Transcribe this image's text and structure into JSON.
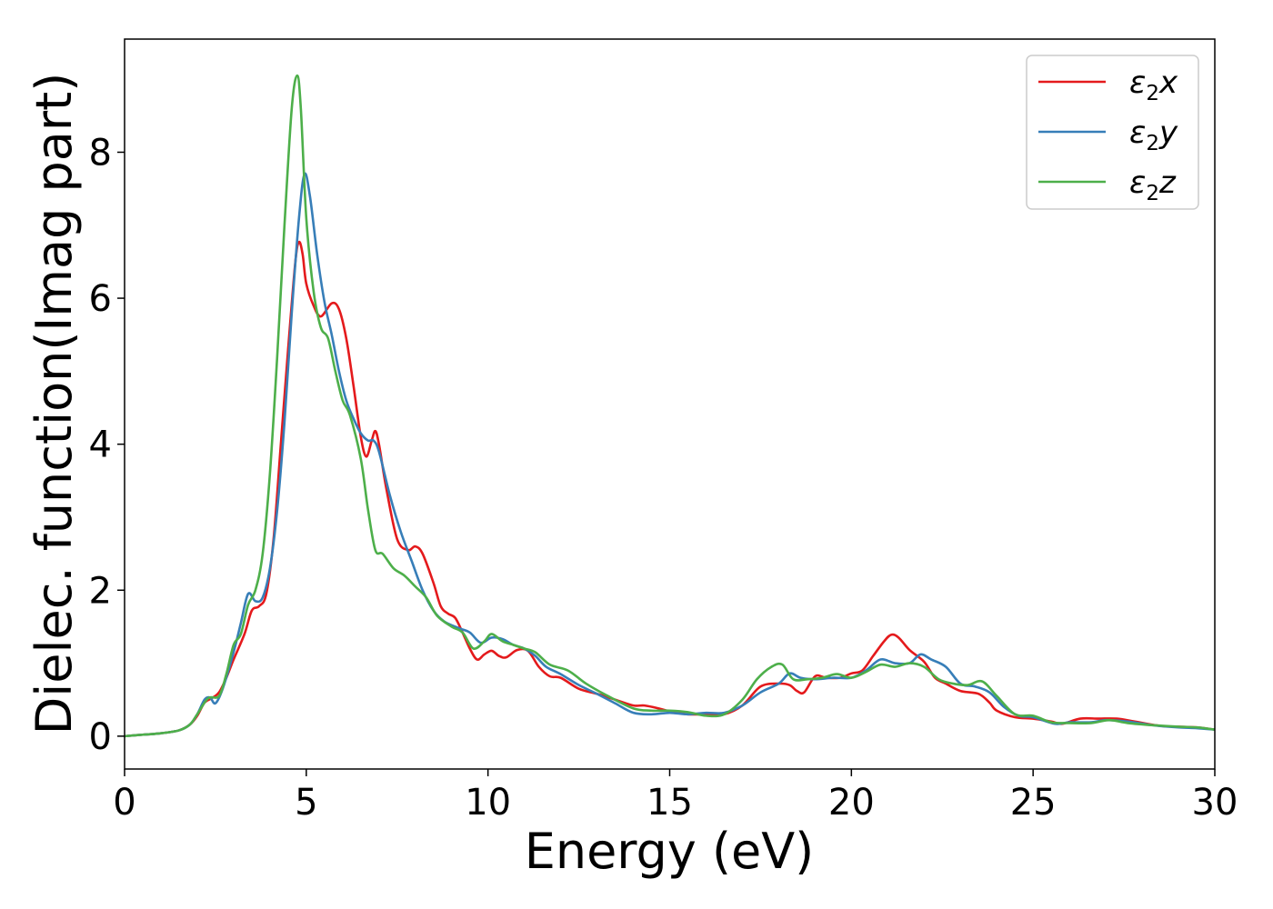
{
  "chart_data": {
    "type": "line",
    "title": "",
    "xlabel": "Energy (eV)",
    "ylabel": "Dielec. function(Imag part)",
    "xlim": [
      0,
      30
    ],
    "ylim": [
      -0.45,
      9.55
    ],
    "xticks": [
      0,
      5,
      10,
      15,
      20,
      25,
      30
    ],
    "yticks": [
      0,
      2,
      4,
      6,
      8
    ],
    "grid": false,
    "legend_position": "top-right",
    "series": [
      {
        "name": "ε₂x",
        "legend_base": "ε",
        "legend_sub": "2",
        "legend_suffix": "x",
        "color": "#e41a1c",
        "points": [
          [
            0,
            0
          ],
          [
            0.5,
            0.02
          ],
          [
            1,
            0.04
          ],
          [
            1.5,
            0.08
          ],
          [
            1.8,
            0.16
          ],
          [
            2,
            0.28
          ],
          [
            2.2,
            0.46
          ],
          [
            2.4,
            0.52
          ],
          [
            2.6,
            0.6
          ],
          [
            2.8,
            0.8
          ],
          [
            3,
            1.05
          ],
          [
            3.3,
            1.4
          ],
          [
            3.5,
            1.72
          ],
          [
            3.7,
            1.78
          ],
          [
            3.9,
            1.95
          ],
          [
            4.1,
            2.7
          ],
          [
            4.3,
            4.0
          ],
          [
            4.5,
            5.3
          ],
          [
            4.7,
            6.5
          ],
          [
            4.8,
            6.77
          ],
          [
            4.9,
            6.6
          ],
          [
            5.0,
            6.2
          ],
          [
            5.2,
            5.9
          ],
          [
            5.4,
            5.75
          ],
          [
            5.7,
            5.93
          ],
          [
            5.9,
            5.85
          ],
          [
            6.1,
            5.45
          ],
          [
            6.3,
            4.8
          ],
          [
            6.5,
            4.1
          ],
          [
            6.65,
            3.83
          ],
          [
            6.8,
            4.05
          ],
          [
            6.9,
            4.18
          ],
          [
            7.0,
            4.0
          ],
          [
            7.2,
            3.4
          ],
          [
            7.5,
            2.7
          ],
          [
            7.8,
            2.55
          ],
          [
            8.0,
            2.6
          ],
          [
            8.2,
            2.5
          ],
          [
            8.5,
            2.1
          ],
          [
            8.7,
            1.78
          ],
          [
            8.9,
            1.68
          ],
          [
            9.1,
            1.62
          ],
          [
            9.3,
            1.42
          ],
          [
            9.5,
            1.2
          ],
          [
            9.7,
            1.05
          ],
          [
            9.9,
            1.12
          ],
          [
            10.1,
            1.17
          ],
          [
            10.3,
            1.1
          ],
          [
            10.5,
            1.08
          ],
          [
            10.8,
            1.18
          ],
          [
            11.1,
            1.17
          ],
          [
            11.4,
            0.95
          ],
          [
            11.7,
            0.82
          ],
          [
            12.0,
            0.8
          ],
          [
            12.5,
            0.65
          ],
          [
            13,
            0.58
          ],
          [
            13.5,
            0.5
          ],
          [
            14,
            0.42
          ],
          [
            14.3,
            0.42
          ],
          [
            14.7,
            0.38
          ],
          [
            15,
            0.34
          ],
          [
            15.5,
            0.3
          ],
          [
            16,
            0.3
          ],
          [
            16.5,
            0.3
          ],
          [
            17,
            0.42
          ],
          [
            17.5,
            0.68
          ],
          [
            18,
            0.72
          ],
          [
            18.3,
            0.7
          ],
          [
            18.5,
            0.62
          ],
          [
            18.7,
            0.6
          ],
          [
            19,
            0.82
          ],
          [
            19.3,
            0.8
          ],
          [
            19.7,
            0.8
          ],
          [
            20,
            0.86
          ],
          [
            20.3,
            0.9
          ],
          [
            20.6,
            1.1
          ],
          [
            20.9,
            1.3
          ],
          [
            21.1,
            1.39
          ],
          [
            21.3,
            1.35
          ],
          [
            21.6,
            1.18
          ],
          [
            22,
            1.02
          ],
          [
            22.3,
            0.8
          ],
          [
            22.6,
            0.72
          ],
          [
            23,
            0.62
          ],
          [
            23.5,
            0.58
          ],
          [
            23.8,
            0.46
          ],
          [
            24,
            0.35
          ],
          [
            24.5,
            0.26
          ],
          [
            25,
            0.24
          ],
          [
            25.5,
            0.2
          ],
          [
            25.8,
            0.17
          ],
          [
            26.3,
            0.24
          ],
          [
            26.8,
            0.24
          ],
          [
            27.3,
            0.24
          ],
          [
            27.8,
            0.2
          ],
          [
            28.5,
            0.14
          ],
          [
            29,
            0.13
          ],
          [
            29.5,
            0.12
          ],
          [
            30,
            0.09
          ]
        ]
      },
      {
        "name": "ε₂y",
        "legend_base": "ε",
        "legend_sub": "2",
        "legend_suffix": "y",
        "color": "#377eb8",
        "points": [
          [
            0,
            0
          ],
          [
            0.5,
            0.02
          ],
          [
            1,
            0.04
          ],
          [
            1.5,
            0.08
          ],
          [
            1.8,
            0.16
          ],
          [
            2,
            0.3
          ],
          [
            2.2,
            0.5
          ],
          [
            2.35,
            0.53
          ],
          [
            2.5,
            0.45
          ],
          [
            2.7,
            0.65
          ],
          [
            3,
            1.15
          ],
          [
            3.2,
            1.55
          ],
          [
            3.4,
            1.95
          ],
          [
            3.6,
            1.85
          ],
          [
            3.8,
            1.9
          ],
          [
            4.0,
            2.3
          ],
          [
            4.2,
            3.1
          ],
          [
            4.4,
            4.3
          ],
          [
            4.6,
            5.8
          ],
          [
            4.8,
            7.1
          ],
          [
            4.95,
            7.7
          ],
          [
            5.1,
            7.4
          ],
          [
            5.3,
            6.6
          ],
          [
            5.5,
            5.95
          ],
          [
            5.7,
            5.5
          ],
          [
            5.9,
            5.0
          ],
          [
            6.1,
            4.6
          ],
          [
            6.3,
            4.35
          ],
          [
            6.5,
            4.15
          ],
          [
            6.7,
            4.05
          ],
          [
            6.85,
            4.05
          ],
          [
            7.0,
            3.9
          ],
          [
            7.3,
            3.3
          ],
          [
            7.6,
            2.8
          ],
          [
            7.9,
            2.4
          ],
          [
            8.2,
            2.0
          ],
          [
            8.5,
            1.72
          ],
          [
            8.8,
            1.57
          ],
          [
            9.2,
            1.48
          ],
          [
            9.5,
            1.42
          ],
          [
            9.8,
            1.28
          ],
          [
            10.1,
            1.35
          ],
          [
            10.4,
            1.33
          ],
          [
            10.7,
            1.25
          ],
          [
            11.0,
            1.2
          ],
          [
            11.3,
            1.1
          ],
          [
            11.6,
            0.95
          ],
          [
            12,
            0.85
          ],
          [
            12.5,
            0.7
          ],
          [
            13,
            0.58
          ],
          [
            13.5,
            0.45
          ],
          [
            14,
            0.32
          ],
          [
            14.5,
            0.3
          ],
          [
            15,
            0.32
          ],
          [
            15.5,
            0.3
          ],
          [
            16,
            0.32
          ],
          [
            16.5,
            0.32
          ],
          [
            17,
            0.42
          ],
          [
            17.5,
            0.6
          ],
          [
            18,
            0.72
          ],
          [
            18.3,
            0.86
          ],
          [
            18.6,
            0.8
          ],
          [
            19,
            0.78
          ],
          [
            19.5,
            0.8
          ],
          [
            20,
            0.8
          ],
          [
            20.4,
            0.9
          ],
          [
            20.8,
            1.05
          ],
          [
            21.2,
            1.0
          ],
          [
            21.6,
            1.0
          ],
          [
            21.9,
            1.12
          ],
          [
            22.2,
            1.05
          ],
          [
            22.6,
            0.95
          ],
          [
            23,
            0.72
          ],
          [
            23.4,
            0.68
          ],
          [
            23.8,
            0.6
          ],
          [
            24.2,
            0.4
          ],
          [
            24.6,
            0.28
          ],
          [
            25,
            0.26
          ],
          [
            25.6,
            0.17
          ],
          [
            26,
            0.19
          ],
          [
            26.6,
            0.19
          ],
          [
            27,
            0.22
          ],
          [
            27.6,
            0.2
          ],
          [
            28.3,
            0.15
          ],
          [
            29,
            0.12
          ],
          [
            29.5,
            0.11
          ],
          [
            30,
            0.09
          ]
        ]
      },
      {
        "name": "ε₂z",
        "legend_base": "ε",
        "legend_sub": "2",
        "legend_suffix": "z",
        "color": "#4daf4a",
        "points": [
          [
            0,
            0
          ],
          [
            0.5,
            0.02
          ],
          [
            1,
            0.04
          ],
          [
            1.5,
            0.08
          ],
          [
            1.8,
            0.16
          ],
          [
            2,
            0.3
          ],
          [
            2.3,
            0.52
          ],
          [
            2.6,
            0.55
          ],
          [
            2.8,
            0.85
          ],
          [
            3.0,
            1.25
          ],
          [
            3.2,
            1.4
          ],
          [
            3.4,
            1.8
          ],
          [
            3.6,
            2.0
          ],
          [
            3.8,
            2.5
          ],
          [
            4.0,
            3.6
          ],
          [
            4.2,
            5.2
          ],
          [
            4.4,
            7.0
          ],
          [
            4.6,
            8.6
          ],
          [
            4.75,
            9.05
          ],
          [
            4.85,
            8.6
          ],
          [
            5.0,
            7.1
          ],
          [
            5.2,
            6.1
          ],
          [
            5.4,
            5.6
          ],
          [
            5.6,
            5.45
          ],
          [
            5.8,
            5.0
          ],
          [
            6.0,
            4.6
          ],
          [
            6.2,
            4.4
          ],
          [
            6.5,
            3.8
          ],
          [
            6.7,
            3.1
          ],
          [
            6.9,
            2.55
          ],
          [
            7.1,
            2.5
          ],
          [
            7.4,
            2.3
          ],
          [
            7.7,
            2.2
          ],
          [
            8.0,
            2.05
          ],
          [
            8.3,
            1.9
          ],
          [
            8.6,
            1.65
          ],
          [
            9.0,
            1.5
          ],
          [
            9.3,
            1.42
          ],
          [
            9.6,
            1.2
          ],
          [
            9.9,
            1.3
          ],
          [
            10.1,
            1.4
          ],
          [
            10.4,
            1.3
          ],
          [
            10.7,
            1.25
          ],
          [
            11.0,
            1.2
          ],
          [
            11.3,
            1.15
          ],
          [
            11.7,
            0.98
          ],
          [
            12.2,
            0.9
          ],
          [
            12.7,
            0.72
          ],
          [
            13.3,
            0.55
          ],
          [
            14,
            0.38
          ],
          [
            14.5,
            0.35
          ],
          [
            15,
            0.35
          ],
          [
            15.5,
            0.33
          ],
          [
            16,
            0.28
          ],
          [
            16.5,
            0.3
          ],
          [
            17,
            0.5
          ],
          [
            17.4,
            0.78
          ],
          [
            17.8,
            0.95
          ],
          [
            18.1,
            0.98
          ],
          [
            18.4,
            0.78
          ],
          [
            18.8,
            0.78
          ],
          [
            19.2,
            0.8
          ],
          [
            19.6,
            0.85
          ],
          [
            20,
            0.8
          ],
          [
            20.4,
            0.88
          ],
          [
            20.8,
            0.98
          ],
          [
            21.2,
            0.95
          ],
          [
            21.6,
            1.0
          ],
          [
            22,
            0.95
          ],
          [
            22.4,
            0.78
          ],
          [
            22.8,
            0.72
          ],
          [
            23.2,
            0.7
          ],
          [
            23.6,
            0.75
          ],
          [
            24,
            0.55
          ],
          [
            24.5,
            0.3
          ],
          [
            25,
            0.28
          ],
          [
            25.5,
            0.19
          ],
          [
            26,
            0.18
          ],
          [
            26.6,
            0.18
          ],
          [
            27.1,
            0.22
          ],
          [
            27.6,
            0.18
          ],
          [
            28.3,
            0.15
          ],
          [
            29,
            0.13
          ],
          [
            29.5,
            0.12
          ],
          [
            30,
            0.09
          ]
        ]
      }
    ]
  }
}
